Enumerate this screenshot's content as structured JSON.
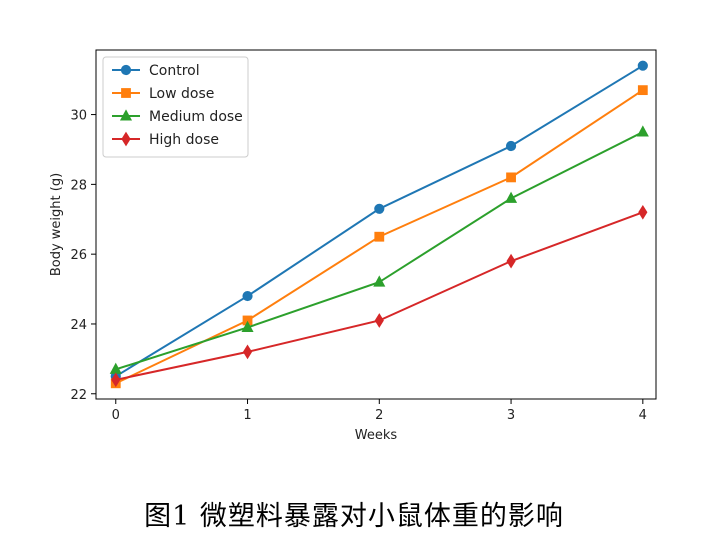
{
  "chart_data": {
    "type": "line",
    "title": "",
    "xlabel": "Weeks",
    "ylabel": "Body weight (g)",
    "x": [
      0,
      1,
      2,
      3,
      4
    ],
    "xticks": [
      0,
      1,
      2,
      3,
      4
    ],
    "yticks": [
      22,
      24,
      26,
      28,
      30
    ],
    "xlim": [
      -0.15,
      4.1
    ],
    "ylim": [
      21.85,
      31.85
    ],
    "grid": false,
    "legend_position": "top-left",
    "series": [
      {
        "name": "Control",
        "values": [
          22.5,
          24.8,
          27.3,
          29.1,
          31.4
        ],
        "color": "#1f77b4",
        "marker": "circle"
      },
      {
        "name": "Low dose",
        "values": [
          22.3,
          24.1,
          26.5,
          28.2,
          30.7
        ],
        "color": "#ff7f0e",
        "marker": "square"
      },
      {
        "name": "Medium dose",
        "values": [
          22.7,
          23.9,
          25.2,
          27.6,
          29.5
        ],
        "color": "#2ca02c",
        "marker": "triangle"
      },
      {
        "name": "High dose",
        "values": [
          22.4,
          23.2,
          24.1,
          25.8,
          27.2
        ],
        "color": "#d62728",
        "marker": "diamond"
      }
    ]
  },
  "caption": "图1 微塑料暴露对小鼠体重的影响"
}
